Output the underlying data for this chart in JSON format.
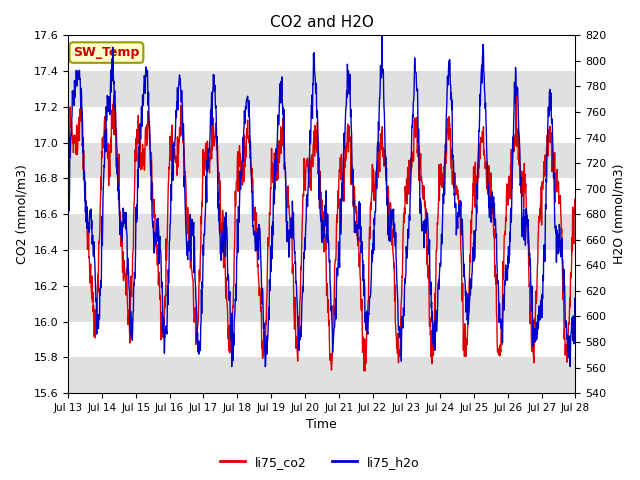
{
  "title": "CO2 and H2O",
  "xlabel": "Time",
  "ylabel_left": "CO2 (mmol/m3)",
  "ylabel_right": "H2O (mmol/m3)",
  "ylim_left": [
    15.6,
    17.6
  ],
  "ylim_right": [
    540,
    820
  ],
  "yticks_left": [
    15.6,
    15.8,
    16.0,
    16.2,
    16.4,
    16.6,
    16.8,
    17.0,
    17.2,
    17.4,
    17.6
  ],
  "yticks_right": [
    540,
    560,
    580,
    600,
    620,
    640,
    660,
    680,
    700,
    720,
    740,
    760,
    780,
    800,
    820
  ],
  "color_co2": "#dd0000",
  "color_h2o": "#0000cc",
  "line_width": 1.0,
  "sw_temp_label": "SW_Temp",
  "sw_temp_bg": "#ffffcc",
  "sw_temp_border": "#999900",
  "legend_co2": "li75_co2",
  "legend_h2o": "li75_h2o",
  "n_days": 15,
  "n_points": 1440,
  "seed": 7,
  "xticklabels": [
    "Jul 13",
    "Jul 14",
    "Jul 15",
    "Jul 16",
    "Jul 17",
    "Jul 18",
    "Jul 19",
    "Jul 20",
    "Jul 21",
    "Jul 22",
    "Jul 23",
    "Jul 24",
    "Jul 25",
    "Jul 26",
    "Jul 27",
    "Jul 28"
  ],
  "xtick_positions": [
    0,
    1,
    2,
    3,
    4,
    5,
    6,
    7,
    8,
    9,
    10,
    11,
    12,
    13,
    14,
    15
  ],
  "xlim": [
    0,
    15
  ],
  "title_fontsize": 11,
  "band_color": "#e0e0e0",
  "bg_color": "#ffffff",
  "fig_bg": "#ffffff"
}
